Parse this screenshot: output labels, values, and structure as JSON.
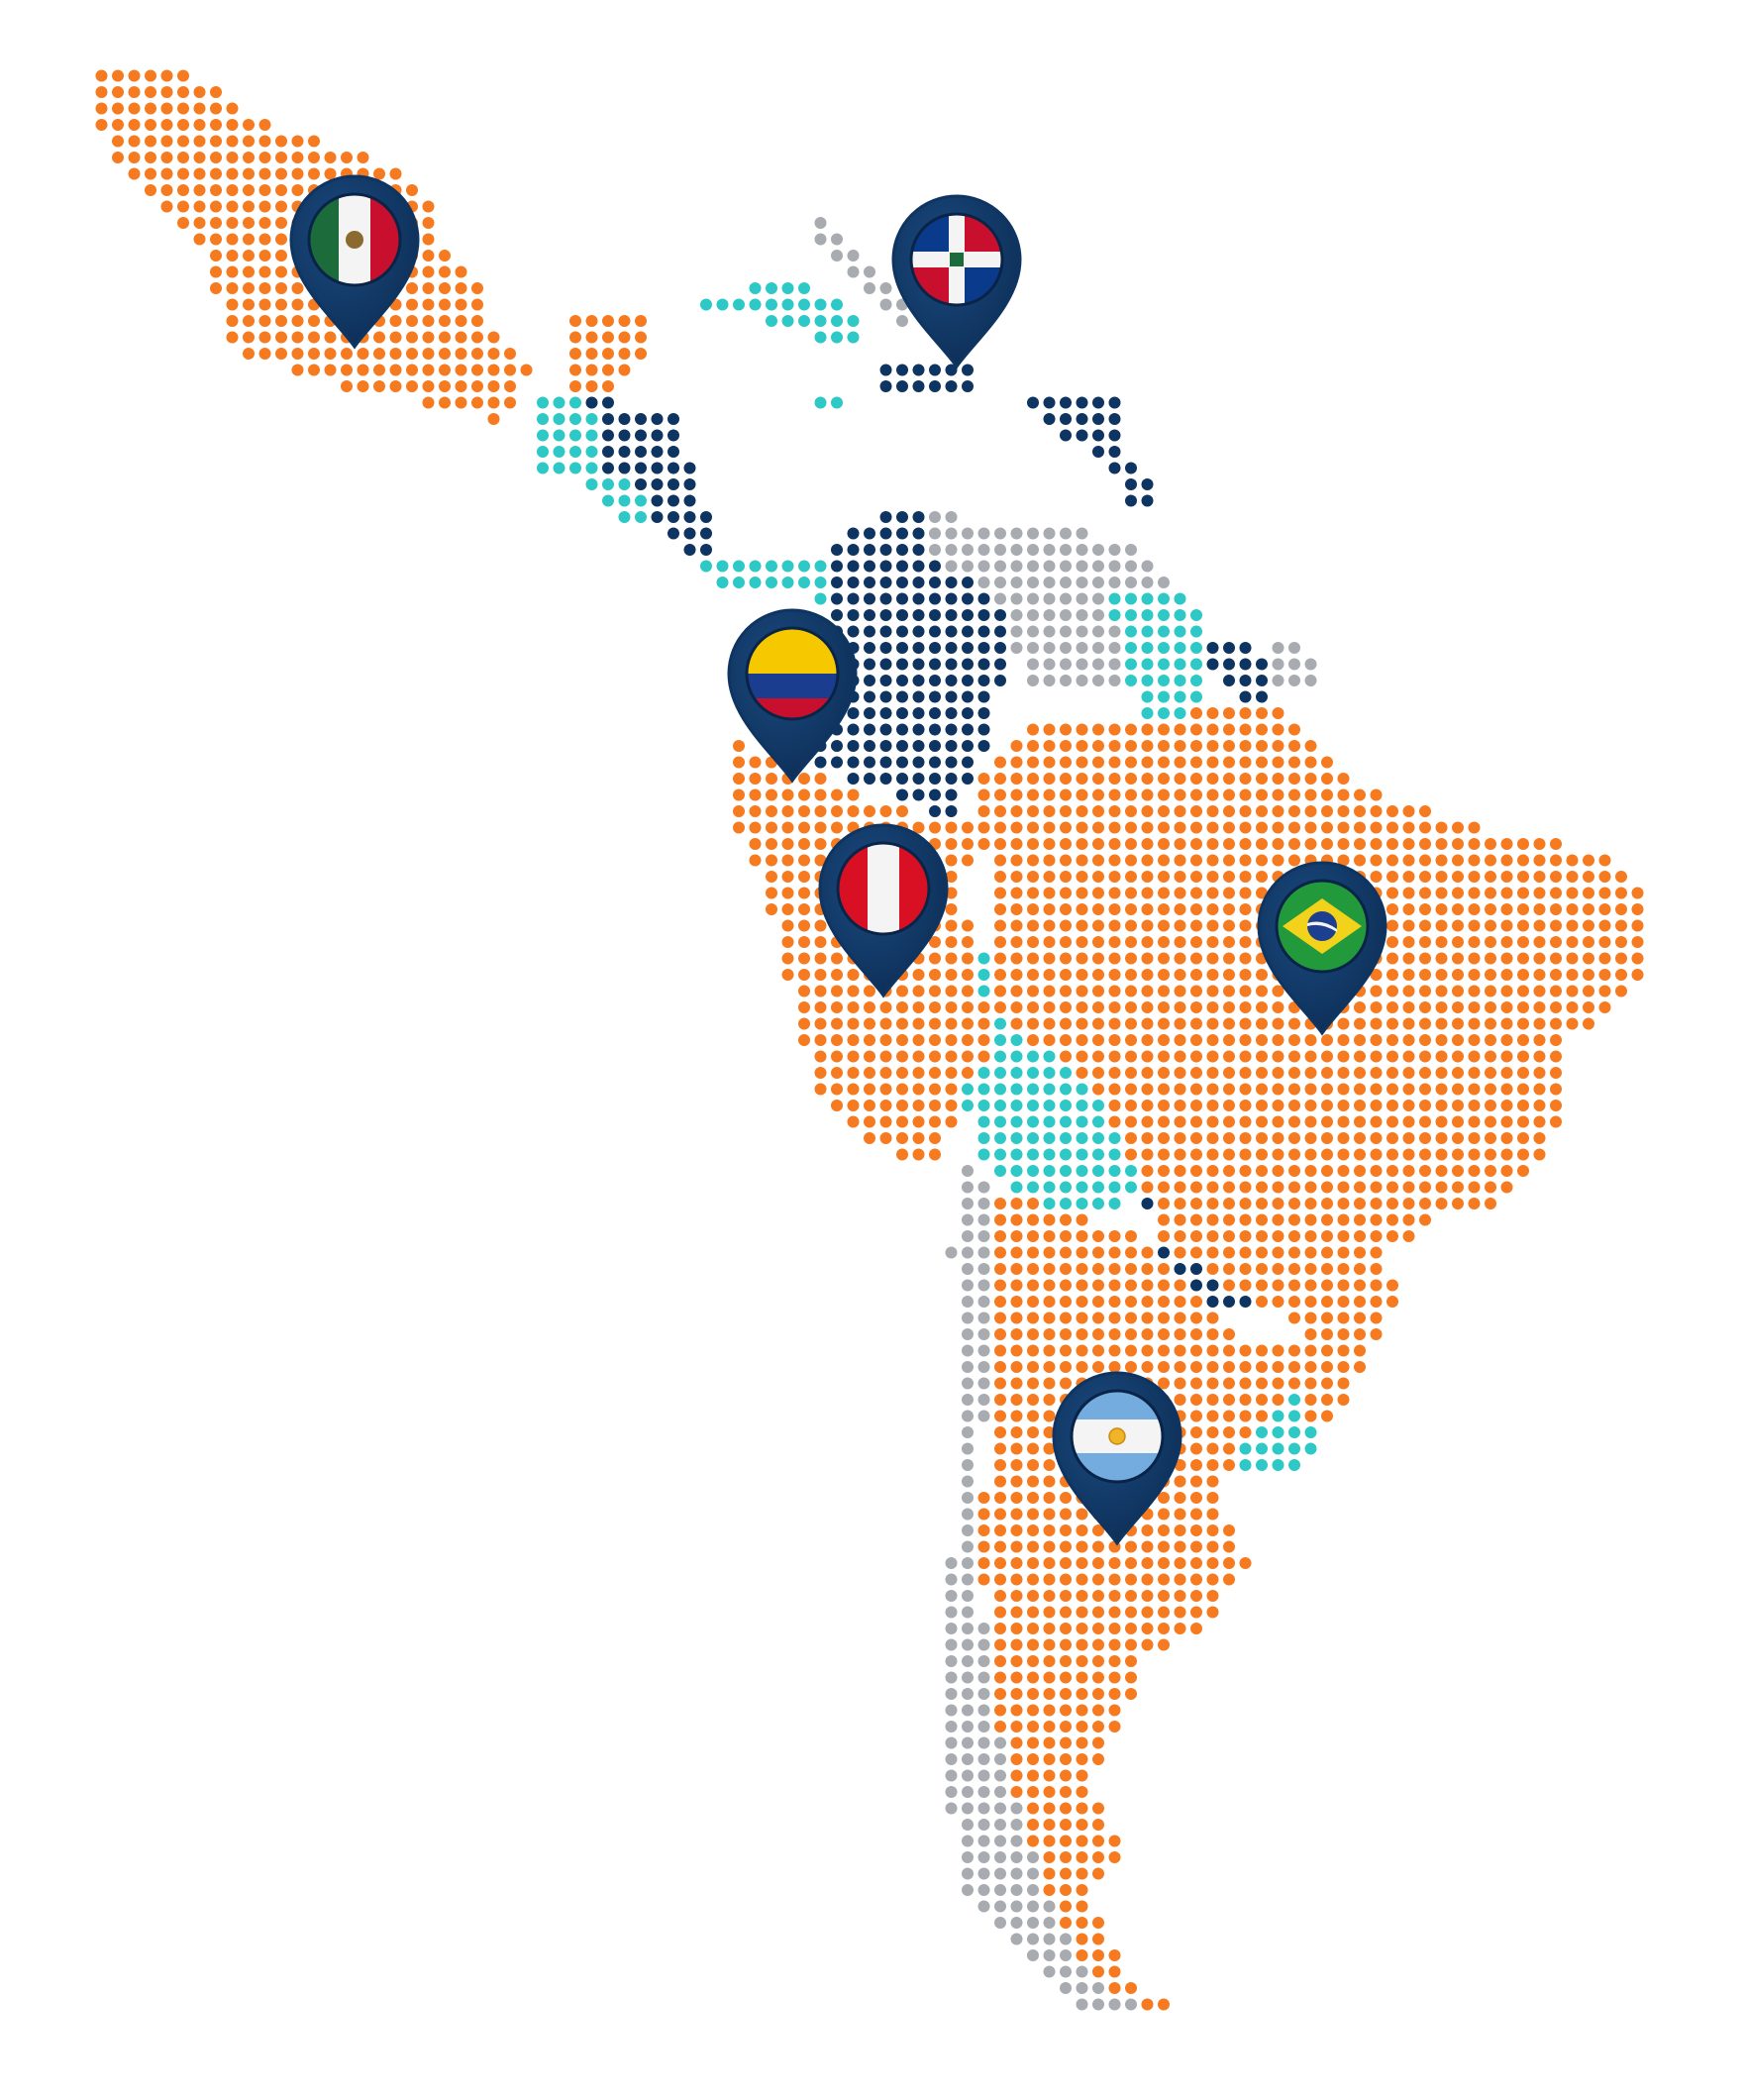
{
  "map": {
    "region": "latin-america",
    "style": "dot-matrix",
    "background_color": "#ffffff",
    "palette": {
      "highlighted": "#f57a20",
      "dark": "#0e3461",
      "teal": "#2ec9c6",
      "gray": "#a8abaf"
    }
  },
  "pins": [
    {
      "country": "mexico",
      "flag": "mexico-flag"
    },
    {
      "country": "dominican-republic",
      "flag": "dominican-republic-flag"
    },
    {
      "country": "colombia",
      "flag": "colombia-flag"
    },
    {
      "country": "peru",
      "flag": "peru-flag"
    },
    {
      "country": "brazil",
      "flag": "brazil-flag"
    },
    {
      "country": "argentina",
      "flag": "argentina-flag"
    }
  ],
  "pin_style": {
    "fill": "#0e3461"
  }
}
